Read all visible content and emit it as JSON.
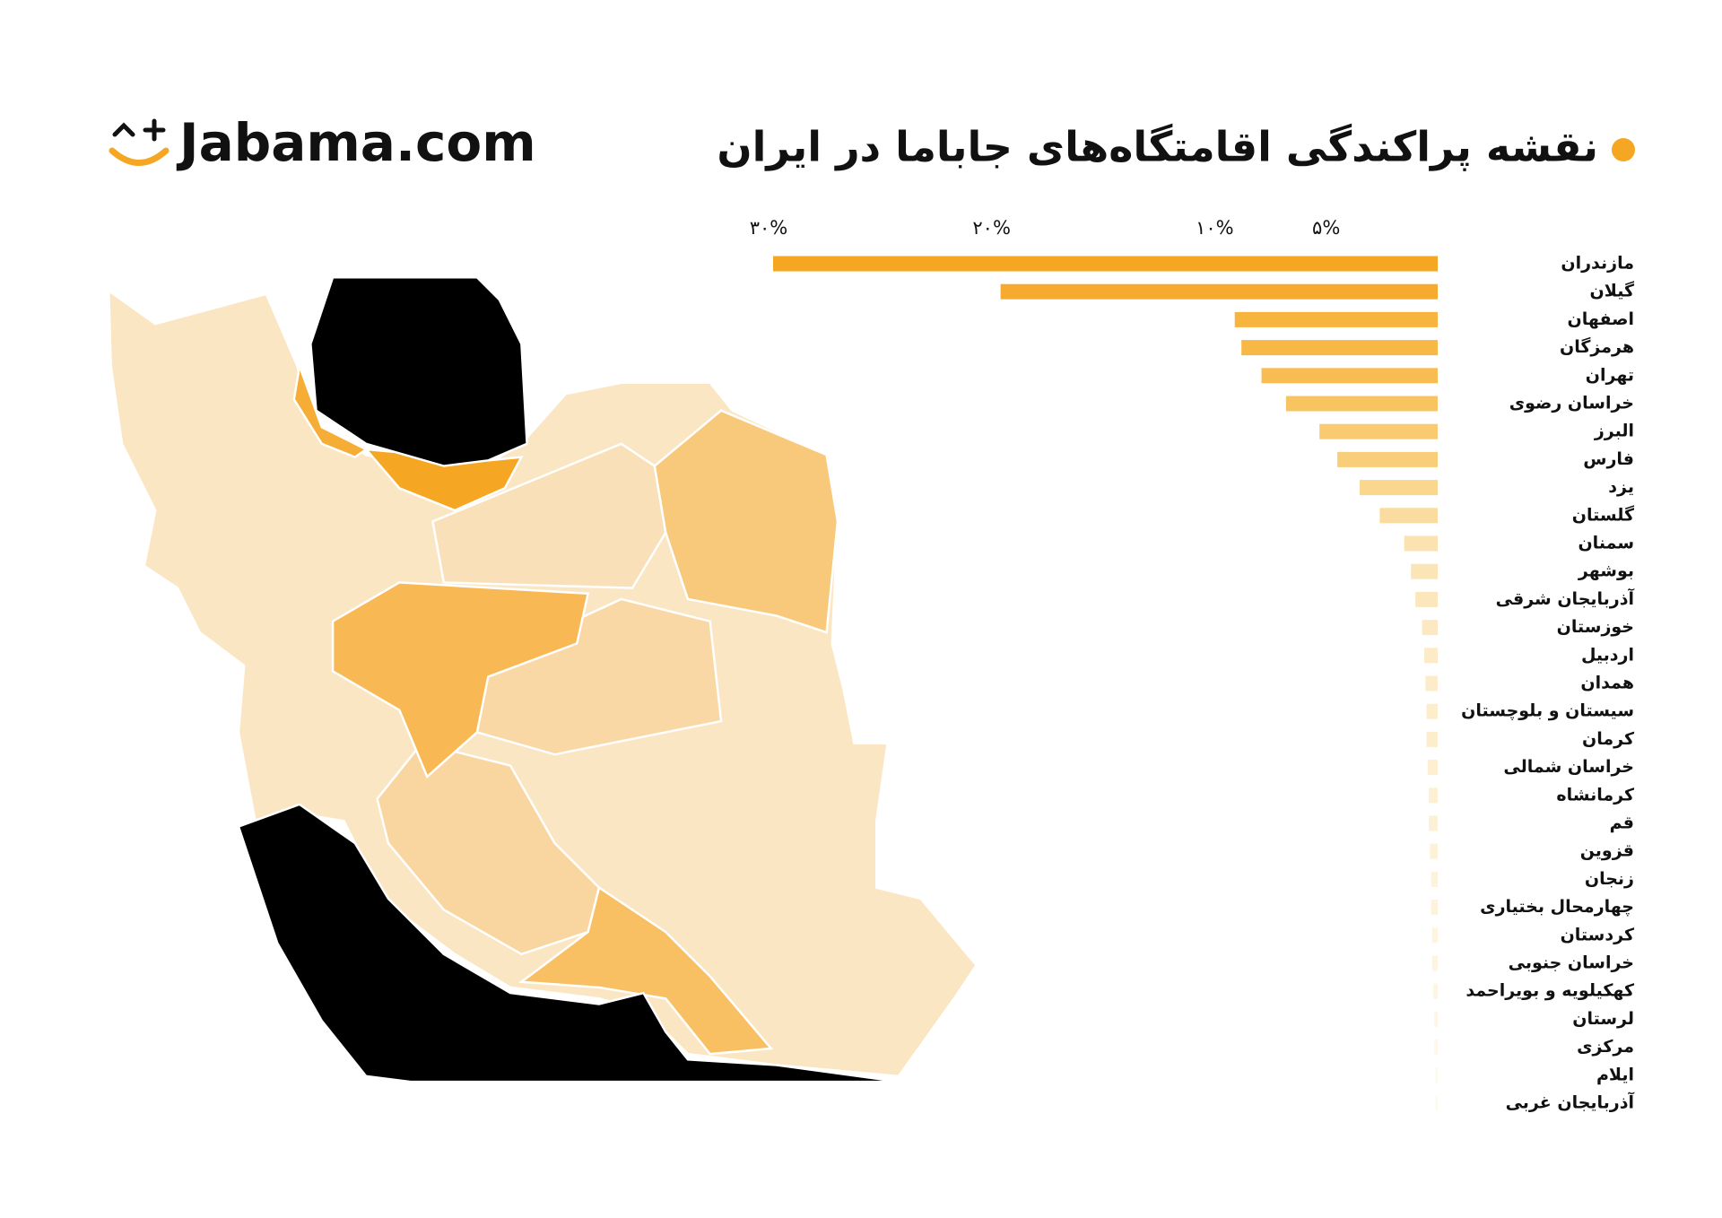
{
  "brand": "Jabama.com",
  "chart_data": {
    "type": "bar",
    "orientation": "horizontal",
    "xaxis_reversed": true,
    "title": "نقشه پراکندگی اقامتگاه‌های جاباما در ایران",
    "categories": [
      "مازندران",
      "گیلان",
      "اصفهان",
      "هرمزگان",
      "تهران",
      "خراسان رضوی",
      "البرز",
      "فارس",
      "یزد",
      "گلستان",
      "سمنان",
      "بوشهر",
      "آذربایجان شرقی",
      "خوزستان",
      "اردبیل",
      "همدان",
      "سیستان و بلوچستان",
      "کرمان",
      "خراسان شمالی",
      "کرمانشاه",
      "قم",
      "قزوین",
      "زنجان",
      "چهارمحال بختیاری",
      "کردستان",
      "خراسان جنوبی",
      "کهکیلویه و بویراحمد",
      "لرستان",
      "مرکزی",
      "ایلام",
      "آذربایجان غربی"
    ],
    "values": [
      29.8,
      19.6,
      9.1,
      8.8,
      7.9,
      6.8,
      5.3,
      4.5,
      3.5,
      2.6,
      1.5,
      1.2,
      1.0,
      0.7,
      0.6,
      0.55,
      0.5,
      0.5,
      0.45,
      0.4,
      0.4,
      0.35,
      0.3,
      0.3,
      0.25,
      0.25,
      0.2,
      0.15,
      0.15,
      0.1,
      0.1
    ],
    "colors": [
      "#f5a623",
      "#f6ab30",
      "#f7b540",
      "#f7b845",
      "#f8bd52",
      "#f8c462",
      "#f9ca70",
      "#f9ce7a",
      "#fad68f",
      "#fadca0",
      "#fbe2b0",
      "#fbe5b6",
      "#fbe7bb",
      "#fce9c1",
      "#fcebc6",
      "#fcecc9",
      "#fcedcb",
      "#fceecd",
      "#fdefd0",
      "#fdf0d3",
      "#fdf1d5",
      "#fdf2d8",
      "#fdf3da",
      "#fdf3dc",
      "#fef4df",
      "#fef5e1",
      "#fef6e4",
      "#fef7e7",
      "#fef8ea",
      "#fef9ed",
      "#fefaf0"
    ],
    "xlim": [
      0,
      30
    ],
    "xticks": [
      {
        "value": 30,
        "label": "۳۰%"
      },
      {
        "value": 20,
        "label": "۲۰%"
      },
      {
        "value": 10,
        "label": "۱۰%"
      },
      {
        "value": 5,
        "label": "۵%"
      }
    ],
    "grid": false
  }
}
